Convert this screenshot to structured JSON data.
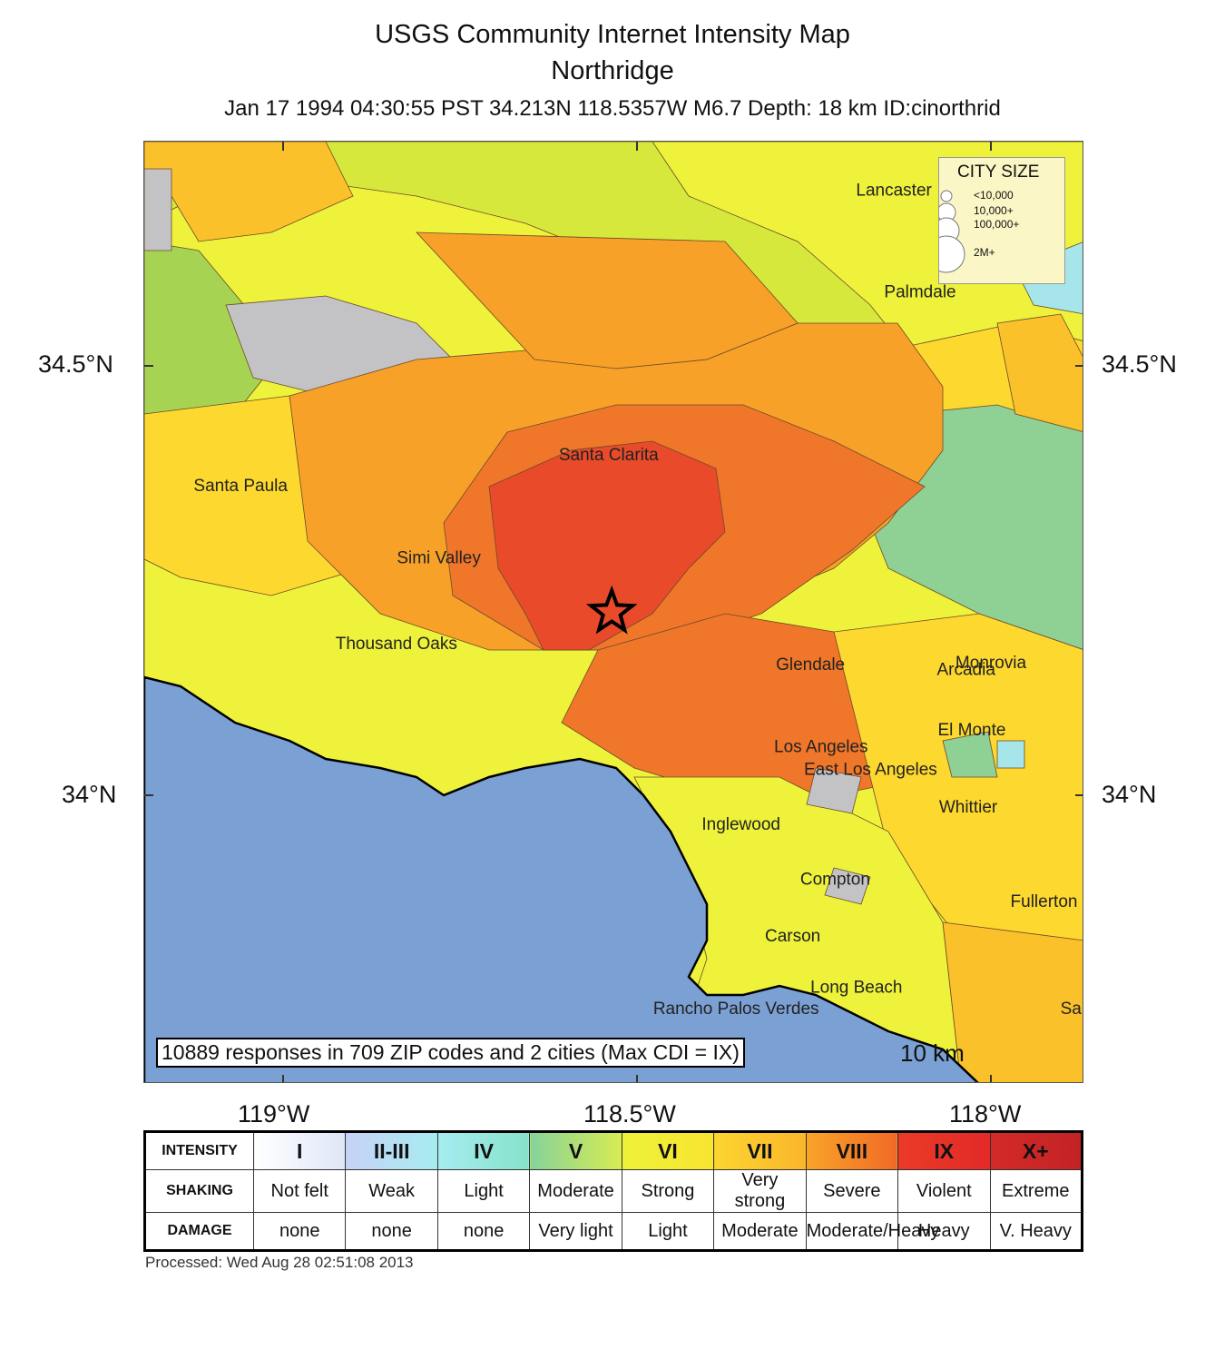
{
  "title": "USGS Community Internet Intensity Map",
  "subtitle": "Northridge",
  "event_line": "Jan 17 1994 04:30:55 PST 34.213N 118.5357W M6.7 Depth: 18 km ID:cinorthrid",
  "axes": {
    "lat_labels": [
      "34.5°N",
      "34°N"
    ],
    "lon_labels": [
      "119°W",
      "118.5°W",
      "118°W"
    ],
    "lat_values": [
      34.5,
      34.0
    ],
    "lon_values": [
      -119.0,
      -118.5,
      -118.0
    ]
  },
  "epicenter": {
    "lat": 34.213,
    "lon": -118.5357,
    "symbol": "star-icon"
  },
  "city_size_legend": {
    "title": "CITY SIZE",
    "items": [
      "<10,000",
      "10,000+",
      "100,000+",
      "2M+"
    ]
  },
  "cities": [
    {
      "name": "Lancaster",
      "lat": 34.698,
      "lon": -118.137
    },
    {
      "name": "Palmdale",
      "lat": 34.58,
      "lon": -118.1
    },
    {
      "name": "Santa Clarita",
      "lat": 34.39,
      "lon": -118.54
    },
    {
      "name": "Santa Paula",
      "lat": 34.354,
      "lon": -119.06
    },
    {
      "name": "Simi Valley",
      "lat": 34.27,
      "lon": -118.78
    },
    {
      "name": "Thousand Oaks",
      "lat": 34.17,
      "lon": -118.84
    },
    {
      "name": "Glendale",
      "lat": 34.146,
      "lon": -118.255
    },
    {
      "name": "Monrovia",
      "lat": 34.148,
      "lon": -118.0
    },
    {
      "name": "Arcadia",
      "lat": 34.14,
      "lon": -118.035
    },
    {
      "name": "Los Angeles",
      "lat": 34.05,
      "lon": -118.24
    },
    {
      "name": "El Monte",
      "lat": 34.07,
      "lon": -118.027
    },
    {
      "name": "East Los Angeles",
      "lat": 34.024,
      "lon": -118.17
    },
    {
      "name": "Whittier",
      "lat": 33.98,
      "lon": -118.032
    },
    {
      "name": "Inglewood",
      "lat": 33.96,
      "lon": -118.353
    },
    {
      "name": "Compton",
      "lat": 33.896,
      "lon": -118.22
    },
    {
      "name": "Fullerton",
      "lat": 33.87,
      "lon": -117.925
    },
    {
      "name": "Carson",
      "lat": 33.83,
      "lon": -118.28
    },
    {
      "name": "Long Beach",
      "lat": 33.77,
      "lon": -118.19
    },
    {
      "name": "Rancho Palos Verdes",
      "lat": 33.745,
      "lon": -118.36
    },
    {
      "name": "Santa",
      "lat": 33.745,
      "lon": -117.87
    }
  ],
  "responses_note": "10889 responses in 709 ZIP codes and 2 cities (Max CDI = IX)",
  "scale_bar": "10 km",
  "legend": {
    "row_headers": [
      "INTENSITY",
      "SHAKING",
      "DAMAGE"
    ],
    "columns": [
      {
        "intensity": "I",
        "shaking": "Not felt",
        "damage": "none",
        "color": "#ffffff",
        "color2": "#dfe6f7"
      },
      {
        "intensity": "II-III",
        "shaking": "Weak",
        "damage": "none",
        "color": "#c8d2f7",
        "color2": "#a6ecf1"
      },
      {
        "intensity": "IV",
        "shaking": "Light",
        "damage": "none",
        "color": "#a6ecf1",
        "color2": "#86e2c9"
      },
      {
        "intensity": "V",
        "shaking": "Moderate",
        "damage": "Very light",
        "color": "#86d39a",
        "color2": "#d8ec52"
      },
      {
        "intensity": "VI",
        "shaking": "Strong",
        "damage": "Light",
        "color": "#eef23a",
        "color2": "#f9e42f"
      },
      {
        "intensity": "VII",
        "shaking": "Very strong",
        "damage": "Moderate",
        "color": "#fbd531",
        "color2": "#fbb62a"
      },
      {
        "intensity": "VIII",
        "shaking": "Severe",
        "damage": "Moderate/Heavy",
        "color": "#f9a428",
        "color2": "#f06a26"
      },
      {
        "intensity": "IX",
        "shaking": "Violent",
        "damage": "Heavy",
        "color": "#ea3a27",
        "color2": "#e22a27"
      },
      {
        "intensity": "X+",
        "shaking": "Extreme",
        "damage": "V. Heavy",
        "color": "#d32a27",
        "color2": "#c32326"
      }
    ]
  },
  "processed": "Processed: Wed Aug 28 02:51:08 2013",
  "colors": {
    "ocean": "#7ba0d3",
    "no_data": "#c3c3c6",
    "cdi_iv": "#a6e6ea",
    "cdi_v": "#8fd094",
    "cdi_v_light": "#a6d452",
    "cdi_vi": "#eef23a",
    "cdi_vi_lime": "#d6e83c",
    "cdi_vii": "#fdd82e",
    "cdi_vii_dark": "#fbc12a",
    "cdi_viii": "#f7a128",
    "cdi_viii_dark": "#f0772a",
    "cdi_ix": "#e84a2a"
  }
}
